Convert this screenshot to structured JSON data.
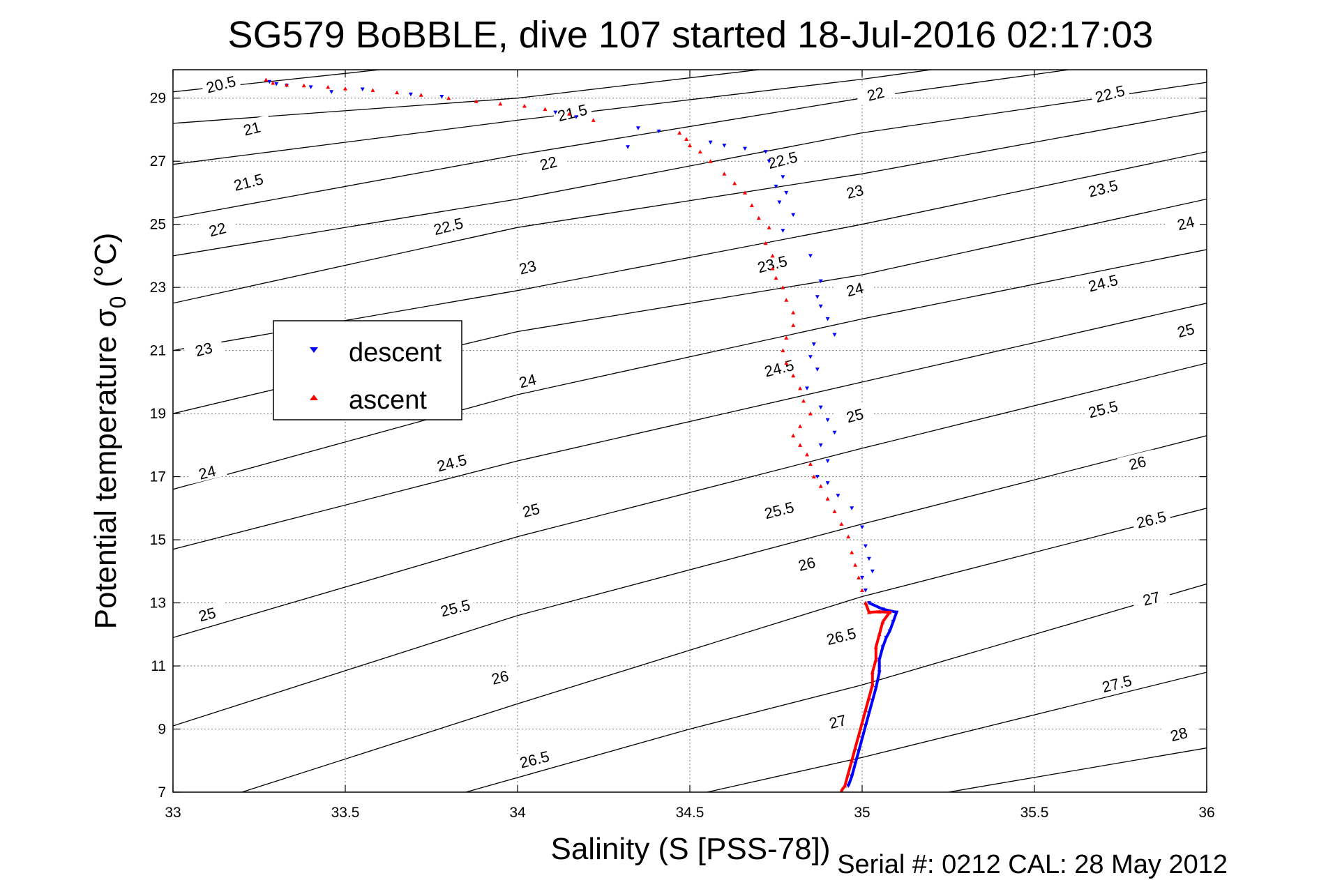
{
  "chart_data": {
    "type": "scatter",
    "title": "SG579 BoBBLE, dive 107 started 18-Jul-2016 02:17:03",
    "xlabel": "Salinity (S [PSS-78])",
    "ylabel_main": "Potential temperature σ",
    "ylabel_sub": "0",
    "ylabel_unit": " (°C)",
    "xlim": [
      33,
      36
    ],
    "ylim": [
      7,
      29.9
    ],
    "xticks": [
      33,
      33.5,
      34,
      34.5,
      35,
      35.5,
      36
    ],
    "xtick_labels": [
      "33",
      "33.5",
      "34",
      "34.5",
      "35",
      "35.5",
      "36"
    ],
    "yticks": [
      7,
      9,
      11,
      13,
      15,
      17,
      19,
      21,
      23,
      25,
      27,
      29
    ],
    "ytick_labels": [
      "7",
      "9",
      "11",
      "13",
      "15",
      "17",
      "19",
      "21",
      "23",
      "25",
      "27",
      "29"
    ],
    "grid": true,
    "legend": {
      "placement": "left",
      "entries": [
        {
          "label": "descent",
          "color": "#0000ff",
          "marker": "triangle-down"
        },
        {
          "label": "ascent",
          "color": "#ff0000",
          "marker": "triangle-up"
        }
      ]
    },
    "footer": "Serial #: 0212  CAL: 28 May 2012",
    "contours": [
      {
        "sigma": 20.5,
        "label": "20.5",
        "points": [
          [
            33,
            29.2
          ],
          [
            33.6,
            29.9
          ]
        ]
      },
      {
        "sigma": 21,
        "label": "21",
        "points": [
          [
            33,
            28.2
          ],
          [
            34,
            29.0
          ],
          [
            34.7,
            29.9
          ]
        ]
      },
      {
        "sigma": 21.5,
        "label": "21.5",
        "points": [
          [
            33,
            26.9
          ],
          [
            34,
            28.3
          ],
          [
            35,
            29.6
          ],
          [
            35.2,
            29.9
          ]
        ]
      },
      {
        "sigma": 22,
        "label": "22",
        "points": [
          [
            33,
            25.2
          ],
          [
            34,
            27.2
          ],
          [
            35,
            29.0
          ],
          [
            35.6,
            29.9
          ]
        ]
      },
      {
        "sigma": 22.5,
        "label": "22.5",
        "points": [
          [
            33,
            24.0
          ],
          [
            34,
            25.8
          ],
          [
            35,
            27.9
          ],
          [
            36,
            29.5
          ]
        ]
      },
      {
        "sigma": 23,
        "label": "23",
        "points": [
          [
            33,
            22.5
          ],
          [
            34,
            24.9
          ],
          [
            35,
            26.6
          ],
          [
            36,
            28.6
          ]
        ]
      },
      {
        "sigma": 23.5,
        "label": "23.5",
        "points": [
          [
            33,
            21.0
          ],
          [
            34,
            22.9
          ],
          [
            35,
            25.0
          ],
          [
            36,
            27.3
          ]
        ]
      },
      {
        "sigma": 24,
        "label": "24",
        "points": [
          [
            33,
            19.0
          ],
          [
            34,
            21.6
          ],
          [
            35,
            23.4
          ],
          [
            36,
            25.8
          ]
        ]
      },
      {
        "sigma": 24.5,
        "label": "24.5",
        "points": [
          [
            33,
            16.6
          ],
          [
            34,
            19.6
          ],
          [
            35,
            22.0
          ],
          [
            36,
            24.2
          ]
        ]
      },
      {
        "sigma": 25,
        "label": "25",
        "points": [
          [
            33,
            14.7
          ],
          [
            34,
            17.5
          ],
          [
            35,
            20.0
          ],
          [
            36,
            22.5
          ]
        ]
      },
      {
        "sigma": 25.5,
        "label": "25.5",
        "points": [
          [
            33,
            11.9
          ],
          [
            34,
            15.1
          ],
          [
            35,
            17.9
          ],
          [
            36,
            20.6
          ]
        ]
      },
      {
        "sigma": 26,
        "label": "26",
        "points": [
          [
            33,
            9.1
          ],
          [
            34,
            12.6
          ],
          [
            35,
            15.5
          ],
          [
            36,
            18.3
          ]
        ]
      },
      {
        "sigma": 26.5,
        "label": "26.5",
        "points": [
          [
            33.2,
            7.0
          ],
          [
            34,
            9.8
          ],
          [
            35,
            13.2
          ],
          [
            36,
            16.0
          ]
        ]
      },
      {
        "sigma": 27,
        "label": "27",
        "points": [
          [
            33.85,
            7.0
          ],
          [
            34.5,
            9.0
          ],
          [
            35,
            10.4
          ],
          [
            36,
            13.6
          ]
        ]
      },
      {
        "sigma": 27.5,
        "label": "27.5",
        "points": [
          [
            34.55,
            7.0
          ],
          [
            35,
            8.1
          ],
          [
            36,
            10.8
          ]
        ]
      },
      {
        "sigma": 28,
        "label": "28",
        "points": [
          [
            35.25,
            7.0
          ],
          [
            36,
            8.4
          ]
        ]
      }
    ],
    "contour_labels": [
      {
        "label": "20.5",
        "x": 33.14,
        "y": 29.4
      },
      {
        "label": "21",
        "x": 33.23,
        "y": 28.0
      },
      {
        "label": "21.5",
        "x": 33.22,
        "y": 26.3
      },
      {
        "label": "22",
        "x": 33.13,
        "y": 24.8
      },
      {
        "label": "22.5",
        "x": 33.8,
        "y": 24.9
      },
      {
        "label": "23",
        "x": 33.09,
        "y": 21.0
      },
      {
        "label": "23",
        "x": 34.03,
        "y": 23.6
      },
      {
        "label": "23.5",
        "x": 34.74,
        "y": 23.7
      },
      {
        "label": "24",
        "x": 33.1,
        "y": 17.1
      },
      {
        "label": "24",
        "x": 34.03,
        "y": 20.0
      },
      {
        "label": "24",
        "x": 34.98,
        "y": 22.9
      },
      {
        "label": "21.5",
        "x": 34.16,
        "y": 28.5
      },
      {
        "label": "22",
        "x": 34.09,
        "y": 26.9
      },
      {
        "label": "22",
        "x": 35.04,
        "y": 29.1
      },
      {
        "label": "22.5",
        "x": 34.77,
        "y": 27.0
      },
      {
        "label": "22.5",
        "x": 35.72,
        "y": 29.1
      },
      {
        "label": "23",
        "x": 34.98,
        "y": 26.0
      },
      {
        "label": "23.5",
        "x": 35.7,
        "y": 26.1
      },
      {
        "label": "24",
        "x": 35.94,
        "y": 25.0
      },
      {
        "label": "24.5",
        "x": 33.81,
        "y": 17.4
      },
      {
        "label": "24.5",
        "x": 34.76,
        "y": 20.4
      },
      {
        "label": "24.5",
        "x": 35.7,
        "y": 23.1
      },
      {
        "label": "25",
        "x": 33.1,
        "y": 12.6
      },
      {
        "label": "25",
        "x": 34.04,
        "y": 15.9
      },
      {
        "label": "25",
        "x": 34.98,
        "y": 18.9
      },
      {
        "label": "25",
        "x": 35.94,
        "y": 21.6
      },
      {
        "label": "25.5",
        "x": 33.82,
        "y": 12.8
      },
      {
        "label": "25.5",
        "x": 34.76,
        "y": 15.9
      },
      {
        "label": "25.5",
        "x": 35.7,
        "y": 19.1
      },
      {
        "label": "26",
        "x": 33.95,
        "y": 10.6
      },
      {
        "label": "26",
        "x": 34.84,
        "y": 14.2
      },
      {
        "label": "26",
        "x": 35.8,
        "y": 17.4
      },
      {
        "label": "26.5",
        "x": 34.05,
        "y": 8.0
      },
      {
        "label": "26.5",
        "x": 34.94,
        "y": 11.9
      },
      {
        "label": "26.5",
        "x": 35.84,
        "y": 15.6
      },
      {
        "label": "27",
        "x": 34.93,
        "y": 9.2
      },
      {
        "label": "27",
        "x": 35.84,
        "y": 13.1
      },
      {
        "label": "27.5",
        "x": 35.74,
        "y": 10.4
      },
      {
        "label": "28",
        "x": 35.92,
        "y": 8.8
      }
    ],
    "series": [
      {
        "name": "descent",
        "color": "#0000ff",
        "marker": "triangle-down",
        "points": [
          [
            33.28,
            29.52
          ],
          [
            33.3,
            29.45
          ],
          [
            33.33,
            29.4
          ],
          [
            33.4,
            29.35
          ],
          [
            33.46,
            29.2
          ],
          [
            33.55,
            29.28
          ],
          [
            33.69,
            29.12
          ],
          [
            33.78,
            29.05
          ],
          [
            34.11,
            28.55
          ],
          [
            34.17,
            28.4
          ],
          [
            34.35,
            28.05
          ],
          [
            34.41,
            27.95
          ],
          [
            34.32,
            27.45
          ],
          [
            34.56,
            27.6
          ],
          [
            34.6,
            27.5
          ],
          [
            34.66,
            27.4
          ],
          [
            34.72,
            27.3
          ],
          [
            34.73,
            27.0
          ],
          [
            34.77,
            26.5
          ],
          [
            34.75,
            26.2
          ],
          [
            34.78,
            26.0
          ],
          [
            34.76,
            25.7
          ],
          [
            34.8,
            25.3
          ],
          [
            34.77,
            24.8
          ],
          [
            34.85,
            24.0
          ],
          [
            34.88,
            23.2
          ],
          [
            34.87,
            22.7
          ],
          [
            34.88,
            22.4
          ],
          [
            34.9,
            22.0
          ],
          [
            34.92,
            21.5
          ],
          [
            34.86,
            21.2
          ],
          [
            34.85,
            20.8
          ],
          [
            34.87,
            20.4
          ],
          [
            34.84,
            19.8
          ],
          [
            34.88,
            19.2
          ],
          [
            34.9,
            18.8
          ],
          [
            34.92,
            18.4
          ],
          [
            34.88,
            18.0
          ],
          [
            34.9,
            17.5
          ],
          [
            34.87,
            17.0
          ],
          [
            34.9,
            16.8
          ],
          [
            34.93,
            16.4
          ],
          [
            34.97,
            16.0
          ],
          [
            35.0,
            15.4
          ],
          [
            35.01,
            14.8
          ],
          [
            35.02,
            14.4
          ],
          [
            35.03,
            14.0
          ],
          [
            35.0,
            13.8
          ],
          [
            35.01,
            13.4
          ],
          [
            35.02,
            13.0
          ],
          [
            35.06,
            12.8
          ],
          [
            35.1,
            12.7
          ],
          [
            35.09,
            12.4
          ],
          [
            35.08,
            12.1
          ],
          [
            35.07,
            11.9
          ],
          [
            35.06,
            11.6
          ],
          [
            35.05,
            11.2
          ],
          [
            35.05,
            10.8
          ],
          [
            35.04,
            10.3
          ],
          [
            35.03,
            9.9
          ],
          [
            35.02,
            9.5
          ],
          [
            35.01,
            9.1
          ],
          [
            35.0,
            8.7
          ],
          [
            34.99,
            8.3
          ],
          [
            34.98,
            7.9
          ],
          [
            34.97,
            7.5
          ],
          [
            34.96,
            7.2
          ]
        ]
      },
      {
        "name": "ascent",
        "color": "#ff0000",
        "marker": "triangle-up",
        "points": [
          [
            33.27,
            29.58
          ],
          [
            33.29,
            29.48
          ],
          [
            33.33,
            29.42
          ],
          [
            33.38,
            29.4
          ],
          [
            33.45,
            29.35
          ],
          [
            33.5,
            29.3
          ],
          [
            33.58,
            29.25
          ],
          [
            33.65,
            29.18
          ],
          [
            33.72,
            29.1
          ],
          [
            33.8,
            29.0
          ],
          [
            33.88,
            28.9
          ],
          [
            33.95,
            28.82
          ],
          [
            34.02,
            28.75
          ],
          [
            34.08,
            28.65
          ],
          [
            34.15,
            28.5
          ],
          [
            34.22,
            28.3
          ],
          [
            34.47,
            27.9
          ],
          [
            34.49,
            27.7
          ],
          [
            34.5,
            27.5
          ],
          [
            34.53,
            27.3
          ],
          [
            34.56,
            27.0
          ],
          [
            34.6,
            26.6
          ],
          [
            34.63,
            26.3
          ],
          [
            34.66,
            26.0
          ],
          [
            34.68,
            25.6
          ],
          [
            34.7,
            25.2
          ],
          [
            34.73,
            24.9
          ],
          [
            34.72,
            24.4
          ],
          [
            34.74,
            24.0
          ],
          [
            34.74,
            23.6
          ],
          [
            34.75,
            23.3
          ],
          [
            34.77,
            23.0
          ],
          [
            34.78,
            22.6
          ],
          [
            34.8,
            22.2
          ],
          [
            34.8,
            21.8
          ],
          [
            34.78,
            21.4
          ],
          [
            34.77,
            21.0
          ],
          [
            34.78,
            20.6
          ],
          [
            34.8,
            20.2
          ],
          [
            34.82,
            19.8
          ],
          [
            34.83,
            19.4
          ],
          [
            34.85,
            19.0
          ],
          [
            34.82,
            18.6
          ],
          [
            34.8,
            18.3
          ],
          [
            34.82,
            18.0
          ],
          [
            34.84,
            17.7
          ],
          [
            34.85,
            17.4
          ],
          [
            34.86,
            17.0
          ],
          [
            34.88,
            16.7
          ],
          [
            34.9,
            16.3
          ],
          [
            34.92,
            15.9
          ],
          [
            34.94,
            15.5
          ],
          [
            34.96,
            15.1
          ],
          [
            34.97,
            14.6
          ],
          [
            34.98,
            14.2
          ],
          [
            34.99,
            13.8
          ],
          [
            35.0,
            13.4
          ],
          [
            35.01,
            13.0
          ],
          [
            35.02,
            12.7
          ],
          [
            35.05,
            12.72
          ],
          [
            35.08,
            12.7
          ],
          [
            35.06,
            12.4
          ],
          [
            35.05,
            12.0
          ],
          [
            35.04,
            11.6
          ],
          [
            35.04,
            11.2
          ],
          [
            35.03,
            10.8
          ],
          [
            35.03,
            10.4
          ],
          [
            35.02,
            10.0
          ],
          [
            35.01,
            9.6
          ],
          [
            35.0,
            9.2
          ],
          [
            34.99,
            8.8
          ],
          [
            34.98,
            8.4
          ],
          [
            34.97,
            8.0
          ],
          [
            34.96,
            7.6
          ],
          [
            34.95,
            7.2
          ],
          [
            34.94,
            7.05
          ]
        ]
      }
    ]
  }
}
